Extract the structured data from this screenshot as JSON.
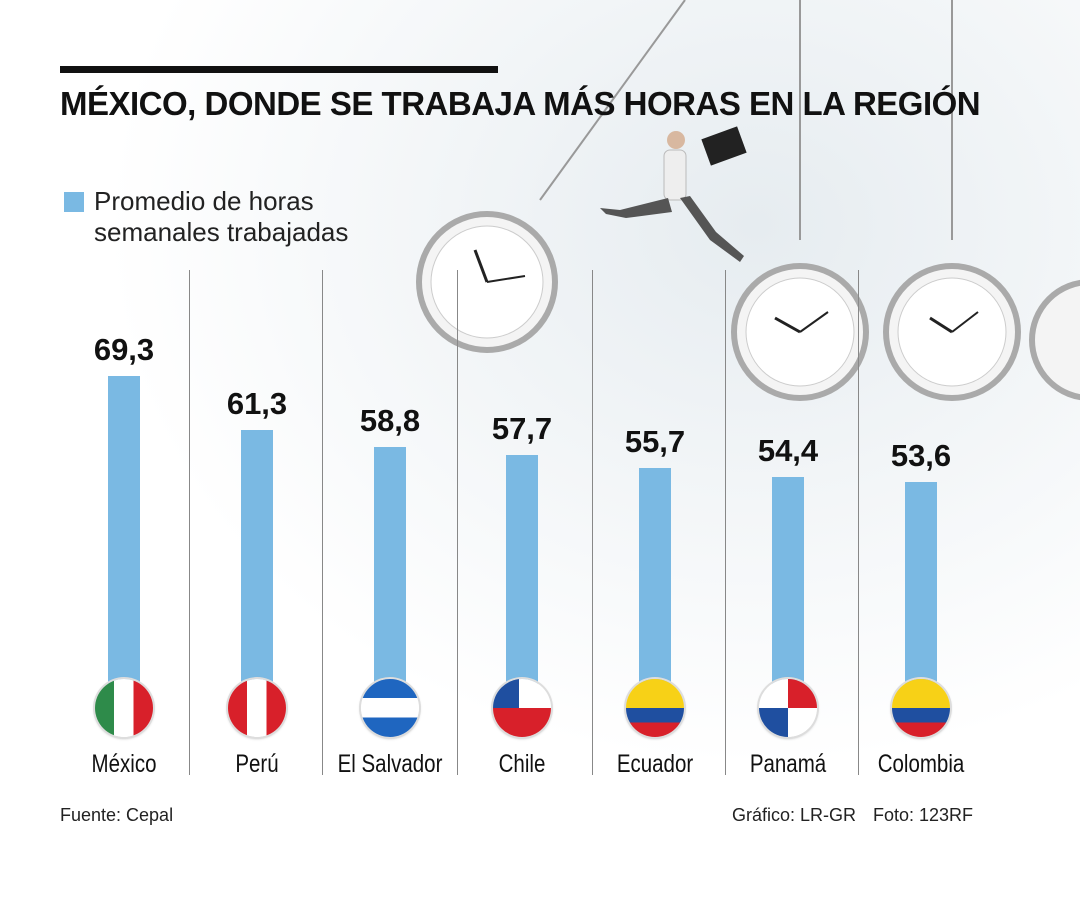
{
  "chart_data": {
    "type": "bar",
    "title": "MÉXICO, DONDE SE TRABAJA MÁS HORAS EN LA REGIÓN",
    "legend": "Promedio de horas semanales trabajadas",
    "categories": [
      "México",
      "Perú",
      "El Salvador",
      "Chile",
      "Ecuador",
      "Panamá",
      "Colombia"
    ],
    "values": [
      69.3,
      61.3,
      58.8,
      57.7,
      55.7,
      54.4,
      53.6
    ],
    "value_labels": [
      "69,3",
      "61,3",
      "58,8",
      "57,7",
      "55,7",
      "54,4",
      "53,6"
    ],
    "flags": [
      "mexico",
      "peru",
      "el-salvador",
      "chile",
      "ecuador",
      "panama",
      "colombia"
    ],
    "bar_color": "#7ab9e3",
    "xlabel": "",
    "ylabel": "",
    "grid": false,
    "legend_position": "top-left"
  },
  "footer": {
    "source": "Fuente: Cepal",
    "graphic": "Gráfico: LR-GR",
    "photo": "Foto: 123RF"
  }
}
